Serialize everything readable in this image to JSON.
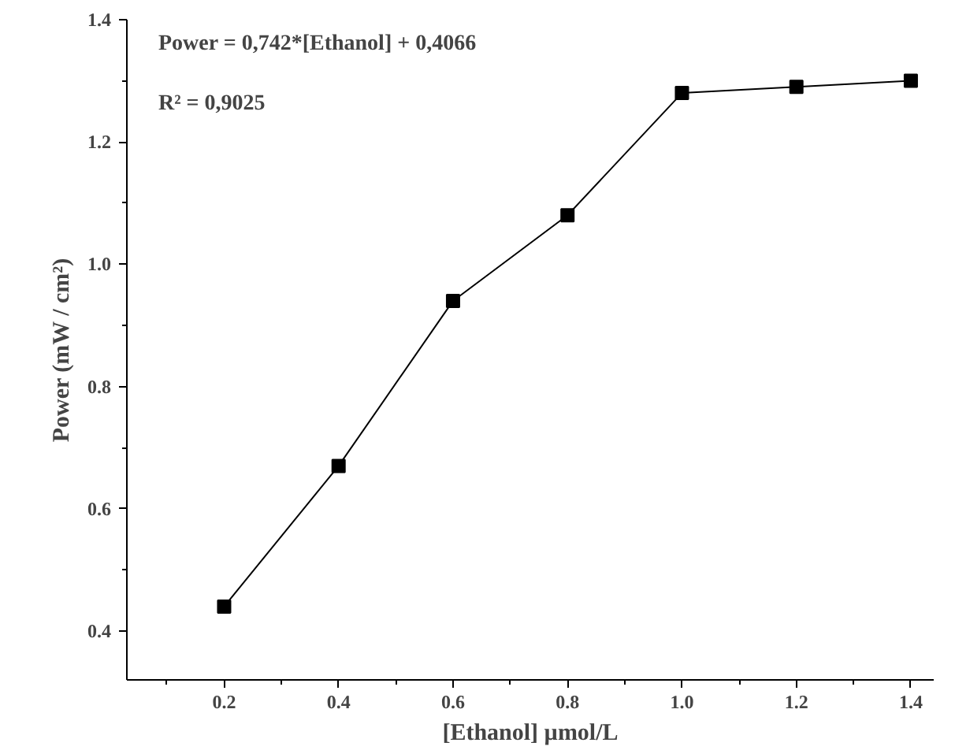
{
  "chart_data": {
    "type": "line",
    "xlabel": "[Ethanol] µmol/L",
    "ylabel": "Power (mW / cm²)",
    "annotations": [
      "Power = 0,742*[Ethanol] + 0,4066",
      "R² = 0,9025"
    ],
    "x": [
      0.2,
      0.4,
      0.6,
      0.8,
      1.0,
      1.2,
      1.4
    ],
    "series": [
      {
        "color": "#000000",
        "values": [
          0.44,
          0.67,
          0.94,
          1.08,
          1.28,
          1.29,
          1.3
        ]
      }
    ],
    "xlim": [
      0.03,
      1.44
    ],
    "ylim": [
      0.32,
      1.4
    ],
    "xticks": [
      {
        "value": 0.2,
        "label": "0.2"
      },
      {
        "value": 0.4,
        "label": "0.4"
      },
      {
        "value": 0.6,
        "label": "0.6"
      },
      {
        "value": 0.8,
        "label": "0.8"
      },
      {
        "value": 1.0,
        "label": "1.0"
      },
      {
        "value": 1.2,
        "label": "1.2"
      },
      {
        "value": 1.4,
        "label": "1.4"
      }
    ],
    "yticks": [
      {
        "value": 0.4,
        "label": "0.4"
      },
      {
        "value": 0.6,
        "label": "0.6"
      },
      {
        "value": 0.8,
        "label": "0.8"
      },
      {
        "value": 1.0,
        "label": "1.0"
      },
      {
        "value": 1.2,
        "label": "1.2"
      },
      {
        "value": 1.4,
        "label": "1.4"
      }
    ],
    "marker": "square",
    "line_style": "solid"
  }
}
